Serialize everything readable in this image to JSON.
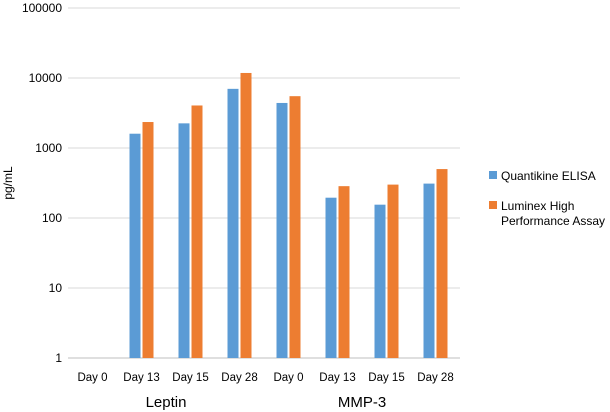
{
  "chart_data": {
    "type": "bar",
    "title": "",
    "xlabel": "",
    "ylabel": "pg/mL",
    "yscale": "log",
    "ylim": [
      1,
      100000
    ],
    "yticks": [
      "1",
      "10",
      "100",
      "1000",
      "10000",
      "100000"
    ],
    "ytick_values": [
      1,
      10,
      100,
      1000,
      10000,
      100000
    ],
    "grid": true,
    "legend_position": "right",
    "groups": [
      {
        "label": "Leptin",
        "categories": [
          "Day 0",
          "Day 13",
          "Day 15",
          "Day 28"
        ]
      },
      {
        "label": "MMP-3",
        "categories": [
          "Day 0",
          "Day 13",
          "Day 15",
          "Day 28"
        ]
      }
    ],
    "categories": [
      "Day 0",
      "Day 13",
      "Day 15",
      "Day 28",
      "Day 0",
      "Day 13",
      "Day 15",
      "Day 28"
    ],
    "series": [
      {
        "name": "Quantikine ELISA",
        "color": "#5b9bd5",
        "values": [
          null,
          1600,
          2250,
          7000,
          4400,
          195,
          155,
          310
        ]
      },
      {
        "name": "Luminex High Performance Assay",
        "color": "#ed7d31",
        "legend_lines": [
          "Luminex High",
          "Performance Assay"
        ],
        "values": [
          null,
          2350,
          4050,
          11800,
          5500,
          285,
          300,
          500
        ]
      }
    ]
  }
}
